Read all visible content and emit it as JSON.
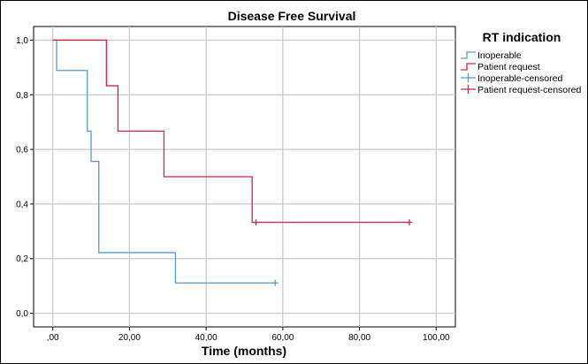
{
  "chart_data": {
    "type": "line",
    "subtype": "kaplan-meier",
    "title": "Disease Free Survival",
    "xlabel": "Time (months)",
    "ylabel": "",
    "xlim": [
      -5,
      105
    ],
    "ylim": [
      -0.05,
      1.05
    ],
    "x_ticks": [
      0,
      20,
      40,
      60,
      80,
      100
    ],
    "x_tick_labels": [
      ",00",
      "20,00",
      "40,00",
      "60,00",
      "80,00",
      "100,00"
    ],
    "y_ticks": [
      0,
      0.2,
      0.4,
      0.6,
      0.8,
      1.0
    ],
    "y_tick_labels": [
      "0,0",
      "0,2",
      "0,4",
      "0,6",
      "0,8",
      "1,0"
    ],
    "grid": true,
    "legend_title": "RT indication",
    "legend_position": "right",
    "series": [
      {
        "name": "Inoperable",
        "color": "#5b9bd5",
        "steps": [
          [
            0,
            1.0
          ],
          [
            1,
            0.889
          ],
          [
            9,
            0.667
          ],
          [
            10,
            0.556
          ],
          [
            12,
            0.222
          ],
          [
            32,
            0.111
          ],
          [
            58,
            0.111
          ]
        ],
        "censored": [
          [
            58,
            0.111
          ]
        ]
      },
      {
        "name": "Patient request",
        "color": "#d6204a",
        "steps": [
          [
            0,
            1.0
          ],
          [
            14,
            0.833
          ],
          [
            17,
            0.667
          ],
          [
            29,
            0.5
          ],
          [
            52,
            0.333
          ],
          [
            93,
            0.333
          ]
        ],
        "censored": [
          [
            53,
            0.333
          ],
          [
            93,
            0.333
          ]
        ]
      }
    ],
    "legend": [
      {
        "label": "Inoperable",
        "color": "#5b9bd5",
        "marker": "step"
      },
      {
        "label": "Patient request",
        "color": "#d6204a",
        "marker": "step"
      },
      {
        "label": "Inoperable-censored",
        "color": "#5b9bd5",
        "marker": "plus"
      },
      {
        "label": "Patient request-censored",
        "color": "#d6204a",
        "marker": "plus"
      }
    ]
  }
}
